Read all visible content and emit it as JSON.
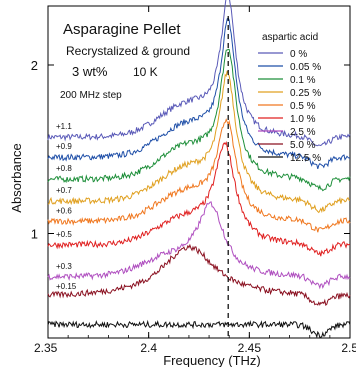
{
  "chart_data": {
    "type": "line",
    "annotations": {
      "title": "Asparagine Pellet",
      "line2": "Recrystalized & ground",
      "concentration": "3 wt%",
      "temperature": "10 K",
      "step": "200 MHz step"
    },
    "xlabel": "Frequency (THz)",
    "ylabel": "Absorbance",
    "xlim": [
      2.35,
      2.5
    ],
    "ylim": [
      0.38,
      2.35
    ],
    "x_ticks": [
      "2.35",
      "2.4",
      "2.45",
      "2.5"
    ],
    "y_ticks": [
      "1",
      "2"
    ],
    "grid": false,
    "legend_title": "aspartic acid",
    "legend_position": "top-right",
    "reference_line": {
      "x": 2.4395,
      "style": "dashed"
    },
    "series": [
      {
        "name": "0 %",
        "offset_label": "+1.1",
        "color": "#5a5ab8",
        "baseline": 1.57,
        "peak_x": 2.4395,
        "peak_height": 0.78,
        "width": 0.0045,
        "shoulder_height": 0.18,
        "slope": -0.0
      },
      {
        "name": "0.05 %",
        "offset_label": "+0.9",
        "color": "#1f4fa8",
        "baseline": 1.45,
        "peak_x": 2.4395,
        "peak_height": 0.75,
        "width": 0.0046,
        "shoulder_height": 0.18,
        "slope": 0.0
      },
      {
        "name": "0.1 %",
        "offset_label": "+0.8",
        "color": "#1e8f3a",
        "baseline": 1.32,
        "peak_x": 2.4395,
        "peak_height": 0.72,
        "width": 0.0048,
        "shoulder_height": 0.18,
        "slope": 0.0
      },
      {
        "name": "0.25 %",
        "offset_label": "+0.7",
        "color": "#e0a020",
        "baseline": 1.19,
        "peak_x": 2.4392,
        "peak_height": 0.7,
        "width": 0.005,
        "shoulder_height": 0.18,
        "slope": 0.0
      },
      {
        "name": "0.5 %",
        "offset_label": "+0.6",
        "color": "#f07820",
        "baseline": 1.07,
        "peak_x": 2.4388,
        "peak_height": 0.55,
        "width": 0.0056,
        "shoulder_height": 0.16,
        "slope": 0.0
      },
      {
        "name": "1.0 %",
        "offset_label": "+0.5",
        "color": "#e02020",
        "baseline": 0.93,
        "peak_x": 2.438,
        "peak_height": 0.55,
        "width": 0.0062,
        "shoulder_height": 0.14,
        "slope": 0.0
      },
      {
        "name": "2.5 %",
        "offset_label": "+0.3",
        "color": "#b050c0",
        "baseline": 0.74,
        "peak_x": 2.431,
        "peak_height": 0.4,
        "width": 0.008,
        "shoulder_height": 0.1,
        "slope": 0.0
      },
      {
        "name": "5.0 %",
        "offset_label": "+0.15",
        "color": "#8a1020",
        "baseline": 0.62,
        "peak_x": 2.42,
        "peak_height": 0.3,
        "width": 0.016,
        "shoulder_height": 0.0,
        "slope": 0.0
      },
      {
        "name": "12.5 %",
        "offset_label": "",
        "color": "#111111",
        "baseline": 0.46,
        "peak_x": 2.43,
        "peak_height": 0.0,
        "width": 0.01,
        "shoulder_height": 0.0,
        "slope": 0.0
      }
    ]
  }
}
